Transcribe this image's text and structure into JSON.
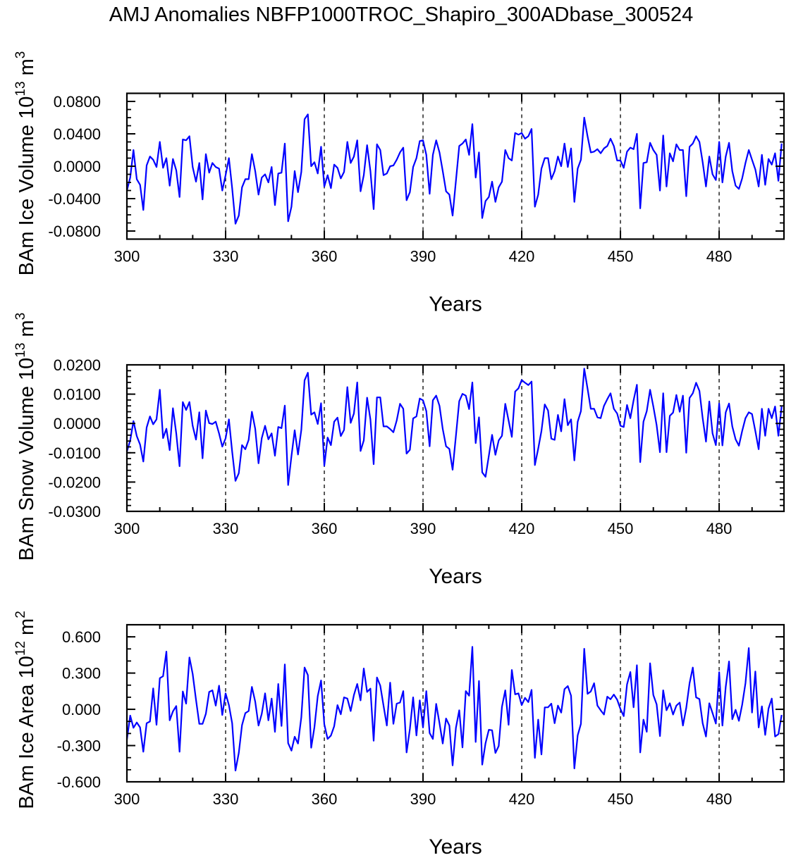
{
  "title": "AMJ Anomalies NBFP1000TROC_Shapiro_300ADbase_300524",
  "colors": {
    "line": "#0000ff",
    "grid": "#000000"
  },
  "chart_data": [
    {
      "type": "line",
      "xlabel": "Years",
      "ylabel": {
        "main": "BAm Ice Volume 10",
        "exp": "13",
        "unit": " m",
        "unit_exp": "3"
      },
      "xlim": [
        300,
        499.7
      ],
      "ylim": [
        -0.09,
        0.09
      ],
      "x_start": 300,
      "x_step": 1,
      "xticks": [
        300,
        330,
        360,
        390,
        420,
        450,
        480
      ],
      "xtick_labels": [
        "300",
        "330",
        "360",
        "390",
        "420",
        "450",
        "480"
      ],
      "x_minor_step": 10,
      "yticks": [
        0.08,
        0.04,
        0.0,
        -0.04,
        -0.08
      ],
      "ytick_labels": [
        "0.0800",
        "0.0400",
        "0.0000",
        "-0.0400",
        "-0.0800"
      ],
      "y_minor_step": 0.01,
      "grid": "dashed vertical at 330,360,390,420,450,480",
      "series": [
        {
          "name": "BAm Ice Volume",
          "values": [
            -0.03,
            -0.014,
            0.02,
            -0.016,
            -0.023,
            -0.054,
            0.001,
            0.012,
            0.008,
            -0.001,
            0.03,
            -0.002,
            0.01,
            -0.024,
            0.009,
            -0.005,
            -0.038,
            0.033,
            0.032,
            0.037,
            -0.001,
            -0.019,
            0.004,
            -0.041,
            0.015,
            -0.008,
            0.004,
            -0.001,
            -0.003,
            -0.03,
            -0.011,
            0.01,
            -0.027,
            -0.071,
            -0.061,
            -0.026,
            -0.016,
            -0.016,
            0.015,
            -0.006,
            -0.035,
            -0.014,
            -0.01,
            -0.02,
            -0.001,
            -0.048,
            -0.009,
            -0.008,
            0.028,
            -0.068,
            -0.05,
            -0.006,
            -0.032,
            -0.007,
            0.058,
            0.064,
            0.0,
            0.005,
            -0.009,
            0.024,
            -0.025,
            -0.011,
            -0.027,
            0.002,
            -0.002,
            -0.015,
            -0.007,
            0.03,
            0.004,
            0.012,
            0.032,
            -0.031,
            -0.011,
            0.026,
            -0.006,
            -0.053,
            0.027,
            0.02,
            -0.011,
            -0.009,
            0.0,
            0.001,
            0.008,
            0.017,
            0.023,
            -0.042,
            -0.032,
            -0.001,
            0.01,
            0.031,
            0.032,
            0.014,
            -0.034,
            0.014,
            0.032,
            0.017,
            -0.006,
            -0.031,
            -0.035,
            -0.061,
            -0.018,
            0.025,
            0.028,
            0.033,
            0.014,
            0.052,
            -0.014,
            0.017,
            -0.064,
            -0.043,
            -0.038,
            -0.019,
            -0.044,
            -0.026,
            -0.019,
            0.02,
            0.01,
            0.007,
            0.041,
            0.039,
            0.041,
            0.034,
            0.037,
            0.046,
            -0.05,
            -0.035,
            -0.003,
            0.01,
            0.01,
            -0.016,
            -0.006,
            0.012,
            0.0,
            0.028,
            -0.001,
            0.022,
            -0.044,
            -0.003,
            0.008,
            0.06,
            0.037,
            0.017,
            0.018,
            0.021,
            0.016,
            0.022,
            0.025,
            0.034,
            0.025,
            0.007,
            0.007,
            -0.002,
            0.018,
            0.023,
            0.021,
            0.04,
            -0.052,
            0.004,
            0.005,
            0.029,
            0.02,
            0.014,
            -0.03,
            0.038,
            -0.025,
            0.016,
            0.006,
            0.027,
            0.02,
            0.02,
            -0.037,
            0.024,
            0.028,
            0.037,
            0.03,
            0.005,
            -0.025,
            0.012,
            -0.01,
            -0.017,
            0.03,
            -0.02,
            0.012,
            0.029,
            -0.006,
            -0.024,
            -0.028,
            -0.015,
            0.004,
            0.02,
            0.008,
            -0.004,
            -0.025,
            0.014,
            -0.023,
            0.009,
            0.002,
            0.016,
            -0.018,
            0.028
          ]
        }
      ]
    },
    {
      "type": "line",
      "xlabel": "Years",
      "ylabel": {
        "main": "BAm Snow Volume 10",
        "exp": "13",
        "unit": " m",
        "unit_exp": "3"
      },
      "xlim": [
        300,
        499.7
      ],
      "ylim": [
        -0.03,
        0.02
      ],
      "x_start": 300,
      "x_step": 1,
      "xticks": [
        300,
        330,
        360,
        390,
        420,
        450,
        480
      ],
      "xtick_labels": [
        "300",
        "330",
        "360",
        "390",
        "420",
        "450",
        "480"
      ],
      "x_minor_step": 10,
      "yticks": [
        0.02,
        0.01,
        0.0,
        -0.01,
        -0.02,
        -0.03
      ],
      "ytick_labels": [
        "0.0200",
        "0.0100",
        "0.0000",
        "-0.0100",
        "-0.0200",
        "-0.0300"
      ],
      "y_minor_step": 0.002,
      "grid": "dashed vertical at 330,360,390,420,450,480",
      "series": [
        {
          "name": "BAm Snow Volume",
          "values": [
            -0.0096,
            -0.0058,
            0.0008,
            -0.0043,
            -0.0072,
            -0.013,
            -0.0014,
            0.0024,
            -0.0003,
            0.0014,
            0.0115,
            -0.005,
            -0.0018,
            -0.0091,
            0.0052,
            -0.0034,
            -0.0146,
            0.0073,
            0.0046,
            0.0073,
            -0.0008,
            -0.0055,
            0.0038,
            -0.0119,
            0.0044,
            0.0001,
            -0.0002,
            0.0006,
            -0.0034,
            -0.0079,
            -0.0051,
            0.0014,
            -0.0096,
            -0.0196,
            -0.017,
            -0.0074,
            -0.0088,
            -0.0056,
            0.004,
            -0.0018,
            -0.0136,
            -0.005,
            -0.0008,
            -0.0054,
            -0.0034,
            -0.011,
            -0.0012,
            -0.0016,
            0.0061,
            -0.021,
            -0.0112,
            -0.0023,
            -0.0106,
            -0.0022,
            0.0147,
            0.0173,
            0.003,
            0.0038,
            -0.0002,
            0.0069,
            -0.0144,
            -0.0048,
            -0.0074,
            0.0006,
            0.002,
            -0.0043,
            -0.0022,
            0.0124,
            0.0002,
            0.0034,
            0.014,
            -0.0094,
            -0.0058,
            0.0088,
            0.0014,
            -0.0139,
            0.0089,
            0.0089,
            -0.001,
            -0.001,
            -0.0019,
            -0.003,
            0.001,
            0.0067,
            0.005,
            -0.0103,
            -0.009,
            0.0017,
            0.0024,
            0.0085,
            0.0079,
            0.0042,
            -0.0078,
            0.0079,
            0.0095,
            0.006,
            -0.0019,
            -0.0078,
            -0.0087,
            -0.0158,
            -0.0042,
            0.0076,
            0.0101,
            0.0095,
            0.0049,
            0.014,
            -0.0067,
            0.0021,
            -0.0167,
            -0.0182,
            -0.011,
            -0.0039,
            -0.0107,
            -0.0058,
            -0.0042,
            0.0067,
            0.001,
            -0.0046,
            0.0109,
            0.012,
            0.0148,
            0.0139,
            0.0131,
            0.0143,
            -0.0142,
            -0.0086,
            -0.0026,
            0.0065,
            0.0044,
            -0.0052,
            -0.0056,
            0.0029,
            -0.0027,
            0.0083,
            -0.0006,
            0.0014,
            -0.0126,
            0.0006,
            0.0042,
            0.0187,
            0.0119,
            0.005,
            0.005,
            0.0021,
            0.0018,
            0.006,
            0.0083,
            0.0103,
            0.005,
            0.0034,
            -0.0008,
            -0.0012,
            0.0063,
            0.0018,
            0.0079,
            0.0132,
            -0.0132,
            0.0006,
            0.0042,
            0.0115,
            0.0058,
            -0.0006,
            -0.0098,
            0.0103,
            -0.0098,
            0.0026,
            0.0037,
            0.0097,
            0.004,
            0.0095,
            -0.01,
            0.0087,
            0.0103,
            0.0139,
            0.0111,
            0.0018,
            -0.0062,
            0.0075,
            -0.0034,
            -0.0074,
            0.0068,
            -0.0075,
            0.0038,
            0.0068,
            -0.001,
            -0.0054,
            -0.0076,
            -0.0026,
            0.0018,
            0.0038,
            0.0032,
            -0.0026,
            -0.0088,
            0.005,
            -0.0042,
            0.005,
            0.0018,
            0.0058,
            -0.0042,
            0.0058
          ]
        }
      ]
    },
    {
      "type": "line",
      "xlabel": "Years",
      "ylabel": {
        "main": "BAm Ice Area 10",
        "exp": "12",
        "unit": " m",
        "unit_exp": "2"
      },
      "xlim": [
        300,
        499.7
      ],
      "ylim": [
        -0.6,
        0.7
      ],
      "x_start": 300,
      "x_step": 1,
      "xticks": [
        300,
        330,
        360,
        390,
        420,
        450,
        480
      ],
      "xtick_labels": [
        "300",
        "330",
        "360",
        "390",
        "420",
        "450",
        "480"
      ],
      "x_minor_step": 10,
      "yticks": [
        0.6,
        0.3,
        0.0,
        -0.3,
        -0.6
      ],
      "ytick_labels": [
        "0.600",
        "0.300",
        "0.000",
        "-0.300",
        "-0.600"
      ],
      "y_minor_step": 0.1,
      "grid": "dashed vertical at 330,360,390,420,450,480",
      "series": [
        {
          "name": "BAm Ice Area",
          "values": [
            -0.25,
            -0.052,
            -0.153,
            -0.109,
            -0.15,
            -0.351,
            -0.115,
            -0.101,
            0.173,
            -0.128,
            0.258,
            0.274,
            0.478,
            -0.091,
            -0.017,
            0.027,
            -0.351,
            0.148,
            0.047,
            0.429,
            0.293,
            0.08,
            -0.12,
            -0.12,
            -0.037,
            0.144,
            0.157,
            0.031,
            0.196,
            -0.047,
            0.132,
            0.035,
            -0.115,
            -0.507,
            -0.361,
            -0.13,
            -0.031,
            -0.014,
            0.186,
            0.064,
            -0.134,
            -0.037,
            0.132,
            -0.091,
            0.089,
            -0.186,
            0.21,
            -0.138,
            0.371,
            -0.28,
            -0.342,
            -0.227,
            -0.283,
            -0.066,
            0.346,
            0.283,
            -0.318,
            -0.148,
            0.109,
            0.239,
            -0.124,
            -0.245,
            -0.217,
            -0.14,
            0.035,
            -0.041,
            0.099,
            0.089,
            -0.014,
            0.118,
            0.21,
            0.074,
            0.338,
            0.144,
            0.171,
            -0.26,
            0.264,
            0.196,
            0.031,
            -0.134,
            0.221,
            -0.12,
            0.047,
            0.056,
            0.151,
            -0.357,
            -0.163,
            0.099,
            -0.216,
            0.074,
            -0.15,
            0.151,
            -0.196,
            -0.245,
            0.045,
            -0.115,
            -0.283,
            -0.076,
            -0.134,
            -0.464,
            -0.153,
            -0.008,
            -0.315,
            0.151,
            0.113,
            0.517,
            -0.27,
            0.235,
            -0.458,
            -0.28,
            -0.169,
            -0.173,
            -0.361,
            -0.303,
            0.021,
            0.157,
            -0.128,
            0.326,
            0.124,
            0.132,
            0.035,
            0.095,
            0.06,
            0.161,
            -0.402,
            -0.085,
            -0.373,
            0.016,
            0.017,
            0.047,
            -0.115,
            0.031,
            -0.027,
            0.167,
            0.192,
            0.113,
            -0.489,
            -0.216,
            -0.12,
            0.501,
            0.128,
            0.148,
            0.216,
            0.031,
            -0.008,
            -0.043,
            0.105,
            0.083,
            0.122,
            0.08,
            0.002,
            -0.056,
            0.206,
            0.309,
            0.017,
            0.365,
            -0.357,
            -0.085,
            -0.186,
            0.381,
            0.118,
            0.041,
            -0.221,
            0.157,
            -0.008,
            0.05,
            -0.043,
            0.031,
            0.056,
            -0.134,
            0.012,
            0.216,
            0.346,
            0.099,
            0.085,
            -0.115,
            -0.225,
            0.05,
            -0.031,
            -0.118,
            0.307,
            -0.134,
            0.186,
            0.396,
            -0.082,
            -0.004,
            -0.095,
            0.037,
            0.216,
            0.507,
            -0.027,
            0.313,
            -0.15,
            0.025,
            -0.212,
            0.006,
            0.089,
            -0.225,
            -0.206,
            -0.047
          ]
        }
      ]
    }
  ]
}
